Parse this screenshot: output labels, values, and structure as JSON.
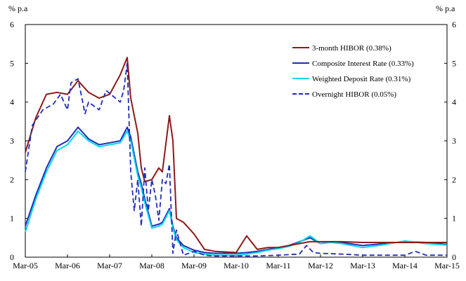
{
  "chart_data": {
    "type": "line",
    "left_unit": "% p.a",
    "right_unit": "% p.a",
    "ylim": [
      0,
      6
    ],
    "yticks": [
      0,
      1,
      2,
      3,
      4,
      5,
      6
    ],
    "xlim": [
      "2005-03",
      "2015-03"
    ],
    "xticks": [
      "Mar-05",
      "Mar-06",
      "Mar-07",
      "Mar-08",
      "Mar-09",
      "Mar-10",
      "Mar-11",
      "Mar-12",
      "Mar-13",
      "Mar-14",
      "Mar-15"
    ],
    "grid": false,
    "legend_position": "top-right",
    "series": [
      {
        "name": "3-month HIBOR (0.38%)",
        "color": "#8B1A1A",
        "style": "solid",
        "x": [
          "2005-03",
          "2005-06",
          "2005-09",
          "2005-12",
          "2006-03",
          "2006-06",
          "2006-09",
          "2006-12",
          "2007-03",
          "2007-06",
          "2007-08",
          "2007-09",
          "2007-11",
          "2007-12",
          "2008-01",
          "2008-03",
          "2008-05",
          "2008-06",
          "2008-08",
          "2008-09",
          "2008-10",
          "2008-12",
          "2009-03",
          "2009-06",
          "2009-09",
          "2010-03",
          "2010-06",
          "2010-09",
          "2010-12",
          "2011-03",
          "2011-06",
          "2011-09",
          "2011-12",
          "2012-03",
          "2012-06",
          "2012-09",
          "2013-03",
          "2013-09",
          "2014-03",
          "2014-09",
          "2015-03"
        ],
        "values": [
          2.7,
          3.6,
          4.2,
          4.25,
          4.2,
          4.55,
          4.25,
          4.1,
          4.2,
          4.7,
          5.15,
          4.1,
          3.2,
          2.3,
          1.95,
          2.0,
          2.3,
          2.2,
          3.65,
          3.0,
          1.0,
          0.9,
          0.6,
          0.2,
          0.15,
          0.12,
          0.55,
          0.2,
          0.25,
          0.25,
          0.3,
          0.35,
          0.4,
          0.4,
          0.4,
          0.4,
          0.38,
          0.38,
          0.38,
          0.38,
          0.38
        ]
      },
      {
        "name": "Composite Interest Rate (0.33%)",
        "color": "#1F2DB8",
        "style": "solid",
        "x": [
          "2005-03",
          "2005-06",
          "2005-09",
          "2005-12",
          "2006-03",
          "2006-06",
          "2006-09",
          "2006-12",
          "2007-03",
          "2007-06",
          "2007-08",
          "2007-09",
          "2007-11",
          "2007-12",
          "2008-01",
          "2008-03",
          "2008-05",
          "2008-06",
          "2008-08",
          "2008-09",
          "2008-10",
          "2008-12",
          "2009-03",
          "2009-06",
          "2009-09",
          "2010-03",
          "2010-06",
          "2010-09",
          "2010-12",
          "2011-03",
          "2011-06",
          "2011-09",
          "2011-12",
          "2012-03",
          "2012-06",
          "2012-09",
          "2013-03",
          "2013-09",
          "2014-03",
          "2014-09",
          "2015-03"
        ],
        "values": [
          0.8,
          1.6,
          2.3,
          2.85,
          3.0,
          3.35,
          3.05,
          2.9,
          2.95,
          3.0,
          3.35,
          3.1,
          2.2,
          1.9,
          1.5,
          0.8,
          0.85,
          0.9,
          1.25,
          0.8,
          0.5,
          0.3,
          0.18,
          0.12,
          0.1,
          0.1,
          0.12,
          0.15,
          0.2,
          0.25,
          0.3,
          0.4,
          0.5,
          0.35,
          0.4,
          0.38,
          0.3,
          0.35,
          0.4,
          0.38,
          0.33
        ]
      },
      {
        "name": "Weighted Deposit Rate (0.31%)",
        "color": "#00D8F0",
        "style": "solid",
        "x": [
          "2005-03",
          "2005-06",
          "2005-09",
          "2005-12",
          "2006-03",
          "2006-06",
          "2006-09",
          "2006-12",
          "2007-03",
          "2007-06",
          "2007-08",
          "2007-09",
          "2007-11",
          "2007-12",
          "2008-01",
          "2008-03",
          "2008-05",
          "2008-06",
          "2008-08",
          "2008-09",
          "2008-10",
          "2008-12",
          "2009-03",
          "2009-06",
          "2009-09",
          "2010-03",
          "2010-06",
          "2010-09",
          "2010-12",
          "2011-03",
          "2011-06",
          "2011-09",
          "2011-12",
          "2012-03",
          "2012-06",
          "2012-09",
          "2013-03",
          "2013-09",
          "2014-03",
          "2014-09",
          "2015-03"
        ],
        "values": [
          0.65,
          1.5,
          2.2,
          2.75,
          2.9,
          3.25,
          3.0,
          2.85,
          2.9,
          2.95,
          3.25,
          3.0,
          2.1,
          1.8,
          1.4,
          0.75,
          0.8,
          0.85,
          1.2,
          0.75,
          0.45,
          0.25,
          0.12,
          0.08,
          0.05,
          0.05,
          0.08,
          0.12,
          0.18,
          0.22,
          0.28,
          0.38,
          0.55,
          0.35,
          0.38,
          0.35,
          0.25,
          0.32,
          0.42,
          0.35,
          0.31
        ]
      },
      {
        "name": "Overnight HIBOR (0.05%)",
        "color": "#1F2DB8",
        "style": "dashed",
        "x": [
          "2005-03",
          "2005-05",
          "2005-08",
          "2005-11",
          "2006-01",
          "2006-03",
          "2006-04",
          "2006-06",
          "2006-08",
          "2006-09",
          "2006-12",
          "2007-02",
          "2007-04",
          "2007-06",
          "2007-07",
          "2007-08",
          "2007-09",
          "2007-10",
          "2007-11",
          "2007-12",
          "2008-01",
          "2008-02",
          "2008-03",
          "2008-04",
          "2008-05",
          "2008-06",
          "2008-07",
          "2008-08",
          "2008-09",
          "2008-10",
          "2008-12",
          "2009-03",
          "2009-06",
          "2009-09",
          "2010-03",
          "2010-09",
          "2011-03",
          "2011-09",
          "2011-11",
          "2012-01",
          "2012-03",
          "2012-09",
          "2013-03",
          "2013-09",
          "2014-03",
          "2014-06",
          "2014-09",
          "2015-03"
        ],
        "values": [
          2.2,
          3.4,
          3.8,
          3.95,
          4.2,
          3.8,
          4.5,
          4.6,
          3.7,
          4.0,
          3.8,
          4.3,
          4.15,
          4.0,
          4.3,
          5.0,
          2.2,
          1.2,
          2.0,
          0.8,
          2.3,
          1.2,
          2.0,
          1.6,
          0.95,
          2.0,
          1.9,
          2.4,
          0.1,
          0.7,
          0.05,
          0.15,
          0.05,
          0.03,
          0.03,
          0.03,
          0.05,
          0.08,
          0.3,
          0.12,
          0.1,
          0.08,
          0.05,
          0.05,
          0.05,
          0.15,
          0.05,
          0.05
        ]
      }
    ]
  }
}
